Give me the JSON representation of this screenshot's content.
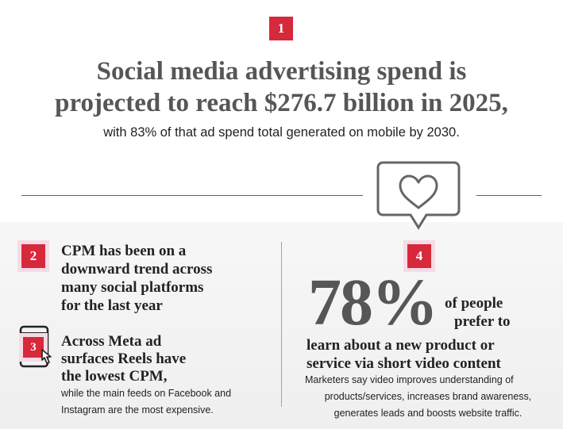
{
  "header": {
    "badge": "1",
    "headline_line1": "Social media advertising spend is",
    "headline_line2": "projected to reach $276.7 billion in 2025,",
    "subline": "with 83% of that ad spend total generated on mobile by 2030."
  },
  "left": {
    "item2": {
      "badge": "2",
      "line1": "CPM has been on a",
      "line2": "downward trend across",
      "line3": "many social platforms",
      "line4": "for the last year"
    },
    "item3": {
      "badge": "3",
      "line1": "Across Meta ad",
      "line2": "surfaces Reels have",
      "line3": "the lowest CPM,",
      "detail1": "while the main feeds on Facebook and",
      "detail2": "Instagram are the most expensive."
    }
  },
  "right": {
    "badge": "4",
    "stat": "78%",
    "stat_suffix1": "of people",
    "stat_suffix2": "prefer to",
    "line1": "learn about a new product or",
    "line2": "service via short video content",
    "detail1": "Marketers say video improves understanding of",
    "detail2": "products/services, increases brand awareness,",
    "detail3": "generates leads and boosts website traffic."
  },
  "icons": {
    "heart_bubble": "heart-speech-bubble-icon",
    "phone_click": "phone-cursor-icon"
  },
  "colors": {
    "accent": "#d6293b",
    "headline": "#565656",
    "text": "#222222"
  }
}
